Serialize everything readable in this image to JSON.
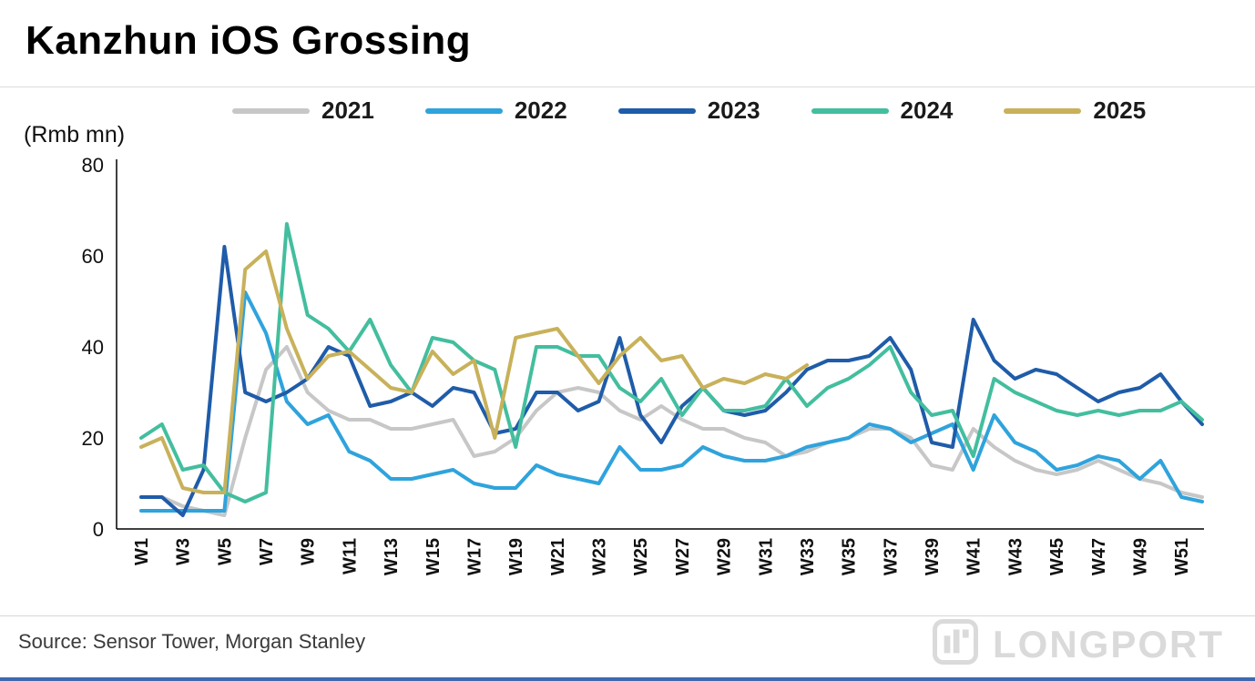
{
  "header": {
    "title": "Kanzhun iOS Grossing"
  },
  "axis": {
    "unit_label": "(Rmb mn)"
  },
  "footer": {
    "source": "Source: Sensor Tower, Morgan Stanley"
  },
  "watermark": {
    "text": "LONGPORT"
  },
  "chart_data": {
    "type": "line",
    "title": "Kanzhun iOS Grossing",
    "unit": "(Rmb mn)",
    "grid": false,
    "legend_position": "top",
    "weeks": 52,
    "ylim": [
      0,
      80
    ],
    "y_ticks": [
      0,
      20,
      40,
      60,
      80
    ],
    "x_ticks": [
      "W1",
      "W3",
      "W5",
      "W7",
      "W9",
      "W11",
      "W13",
      "W15",
      "W17",
      "W19",
      "W21",
      "W23",
      "W25",
      "W27",
      "W29",
      "W31",
      "W33",
      "W35",
      "W37",
      "W39",
      "W41",
      "W43",
      "W45",
      "W47",
      "W49",
      "W51"
    ],
    "series": [
      {
        "name": "2021",
        "color": "#c7c7c7",
        "values": [
          7,
          7,
          5,
          4,
          3,
          20,
          35,
          40,
          30,
          26,
          24,
          24,
          22,
          22,
          23,
          24,
          16,
          17,
          20,
          26,
          30,
          31,
          30,
          26,
          24,
          27,
          24,
          22,
          22,
          20,
          19,
          16,
          17,
          19,
          20,
          22,
          22,
          20,
          14,
          13,
          22,
          18,
          15,
          13,
          12,
          13,
          15,
          13,
          11,
          10,
          8,
          7
        ]
      },
      {
        "name": "2022",
        "color": "#2fa3dc",
        "values": [
          4,
          4,
          4,
          4,
          4,
          52,
          43,
          28,
          23,
          25,
          17,
          15,
          11,
          11,
          12,
          13,
          10,
          9,
          9,
          14,
          12,
          11,
          10,
          18,
          13,
          13,
          14,
          18,
          16,
          15,
          15,
          16,
          18,
          19,
          20,
          23,
          22,
          19,
          21,
          23,
          13,
          25,
          19,
          17,
          13,
          14,
          16,
          15,
          11,
          15,
          7,
          6
        ]
      },
      {
        "name": "2023",
        "color": "#1f5ca9",
        "values": [
          7,
          7,
          3,
          13,
          62,
          30,
          28,
          30,
          33,
          40,
          38,
          27,
          28,
          30,
          27,
          31,
          30,
          21,
          22,
          30,
          30,
          26,
          28,
          42,
          25,
          19,
          27,
          31,
          26,
          25,
          26,
          30,
          35,
          37,
          37,
          38,
          42,
          35,
          19,
          18,
          46,
          37,
          33,
          35,
          34,
          31,
          28,
          30,
          31,
          34,
          28,
          23
        ]
      },
      {
        "name": "2024",
        "color": "#43be9e",
        "values": [
          20,
          23,
          13,
          14,
          8,
          6,
          8,
          67,
          47,
          44,
          39,
          46,
          36,
          30,
          42,
          41,
          37,
          35,
          18,
          40,
          40,
          38,
          38,
          31,
          28,
          33,
          25,
          31,
          26,
          26,
          27,
          33,
          27,
          31,
          33,
          36,
          40,
          30,
          25,
          26,
          16,
          33,
          30,
          28,
          26,
          25,
          26,
          25,
          26,
          26,
          28,
          24
        ]
      },
      {
        "name": "2025",
        "color": "#c8b15a",
        "values": [
          18,
          20,
          9,
          8,
          8,
          57,
          61,
          44,
          33,
          38,
          39,
          35,
          31,
          30,
          39,
          34,
          37,
          20,
          42,
          43,
          44,
          38,
          32,
          38,
          42,
          37,
          38,
          31,
          33,
          32,
          34,
          33,
          36
        ]
      }
    ]
  }
}
